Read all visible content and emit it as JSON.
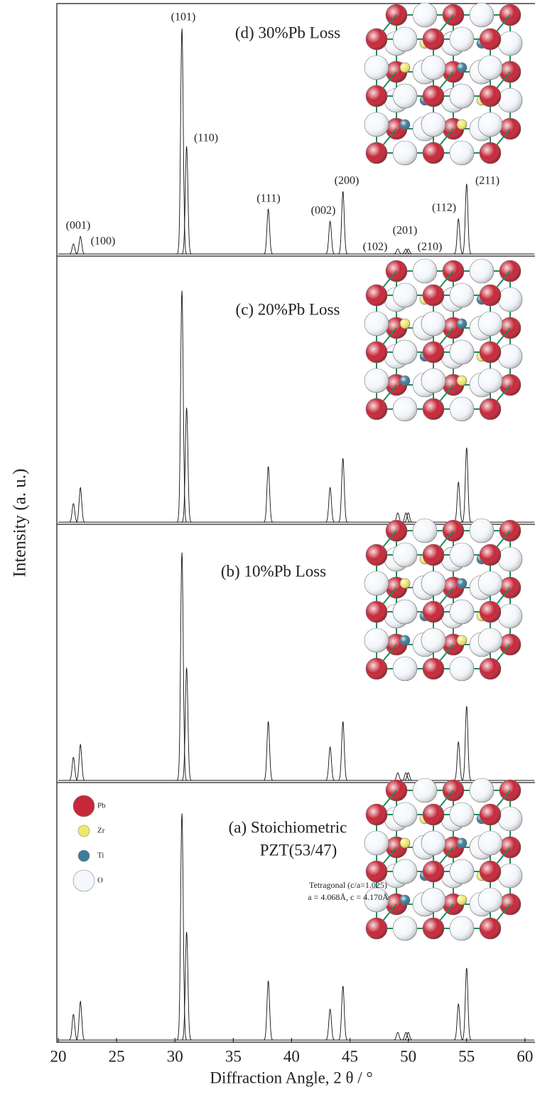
{
  "chart_data": [
    {
      "type": "line",
      "title": [
        "(d) 30%Pb Loss"
      ],
      "x": [
        21.3,
        21.9,
        30.6,
        31.0,
        38.0,
        43.3,
        44.4,
        49.1,
        49.8,
        50.0,
        54.3,
        55.0
      ],
      "values": [
        4,
        7,
        90,
        43,
        18,
        13,
        25,
        2,
        2,
        2,
        14,
        28
      ],
      "peak_labels": [
        "(001)",
        "(100)",
        "(101)",
        "(110)",
        "(111)",
        "(002)",
        "(200)",
        "(102)",
        "(201)",
        "(210)",
        "(112)",
        "(211)"
      ],
      "xlim": [
        20,
        60.8
      ],
      "ylim": [
        0,
        100
      ]
    },
    {
      "type": "line",
      "title": [
        "(c) 20%Pb Loss"
      ],
      "x": [
        21.3,
        21.9,
        30.6,
        31.0,
        38.0,
        43.3,
        44.4,
        49.1,
        49.8,
        50.0,
        54.3,
        55.0
      ],
      "values": [
        7,
        13,
        87,
        43,
        21,
        13,
        24,
        3.5,
        3.5,
        3.5,
        15,
        28
      ],
      "xlim": [
        20,
        60.8
      ],
      "ylim": [
        0,
        100
      ]
    },
    {
      "type": "line",
      "title": [
        "(b) 10%Pb Loss"
      ],
      "x": [
        21.3,
        21.9,
        30.6,
        31.0,
        38.0,
        43.3,
        44.4,
        49.1,
        49.8,
        50.0,
        54.3,
        55.0
      ],
      "values": [
        9,
        14,
        89,
        44,
        23,
        13,
        23,
        3,
        3,
        3,
        15,
        29
      ],
      "xlim": [
        20,
        60.8
      ],
      "ylim": [
        0,
        100
      ]
    },
    {
      "type": "line",
      "title": [
        "(a) Stoichiometric",
        "PZT(53/47)"
      ],
      "annotations": [
        "Tetragonal (c/a=1.025)",
        "a = 4.068Å, c = 4.170Å"
      ],
      "atoms": [
        {
          "name": "Pb",
          "color": "#c62839"
        },
        {
          "name": "Zr",
          "color": "#eee86a"
        },
        {
          "name": "Ti",
          "color": "#3f7c99"
        },
        {
          "name": "O",
          "color": "#f4f7fb"
        }
      ],
      "x": [
        21.3,
        21.9,
        30.6,
        31.0,
        38.0,
        43.3,
        44.4,
        49.1,
        49.8,
        50.0,
        54.3,
        55.0
      ],
      "values": [
        10,
        15,
        88,
        42,
        23,
        12,
        21,
        3,
        3,
        3,
        14,
        28
      ],
      "xlim": [
        20,
        60.8
      ],
      "ylim": [
        0,
        100
      ],
      "xticks": [
        20,
        25,
        30,
        35,
        40,
        45,
        50,
        55,
        60
      ],
      "xlabel": "Diffraction Angle, 2 θ / °",
      "ylabel": "Intensity (a. u.)"
    }
  ]
}
